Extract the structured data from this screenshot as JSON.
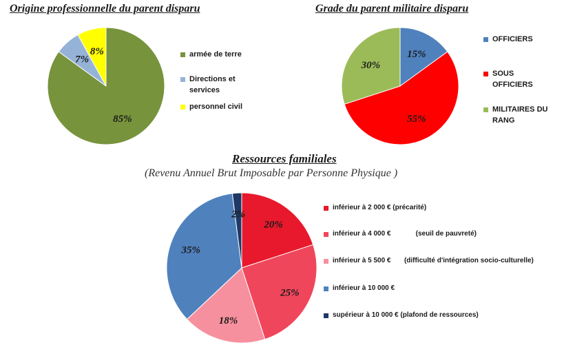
{
  "chart_data": [
    {
      "type": "pie",
      "title": "Origine professionnelle  du parent disparu",
      "slices": [
        {
          "label": "armée de terre",
          "value": 85,
          "display": "85%",
          "color": "#77933c"
        },
        {
          "label": "Directions et\nservices",
          "value": 7,
          "display": "7%",
          "color": "#95b3d7"
        },
        {
          "label": "personnel civil",
          "value": 8,
          "display": "8%",
          "color": "#ffff00"
        }
      ],
      "legend": "right"
    },
    {
      "type": "pie",
      "title": "Grade du parent militaire disparu",
      "slices": [
        {
          "label": "OFFICIERS",
          "value": 15,
          "display": "15%",
          "color": "#4f81bd"
        },
        {
          "label": "SOUS\nOFFICIERS",
          "value": 55,
          "display": "55%",
          "color": "#ff0000"
        },
        {
          "label": "MILITAIRES DU\nRANG",
          "value": 30,
          "display": "30%",
          "color": "#9bbb59"
        }
      ],
      "legend": "right"
    },
    {
      "type": "pie",
      "title": "Ressources familiales",
      "subtitle": "(Revenu Annuel Brut Imposable par Personne Physique )",
      "slices": [
        {
          "label": "inférieur à 2 000 € (précarité)",
          "value": 20,
          "display": "20%",
          "color": "#e8192c"
        },
        {
          "label": "inférieur à 4 000 €             (seuil de pauvreté)",
          "value": 25,
          "display": "25%",
          "color": "#f0465c"
        },
        {
          "label": "inférieur à 5 500 €       (difficulté d'intégration socio-culturelle)",
          "value": 18,
          "display": "18%",
          "color": "#f7909e"
        },
        {
          "label": "inférieur à 10 000 €",
          "value": 35,
          "display": "35%",
          "color": "#4f81bd"
        },
        {
          "label": "supérieur à 10 000 € (plafond de ressources)",
          "value": 2,
          "display": "2%",
          "color": "#1f3864"
        }
      ],
      "legend": "right"
    }
  ]
}
